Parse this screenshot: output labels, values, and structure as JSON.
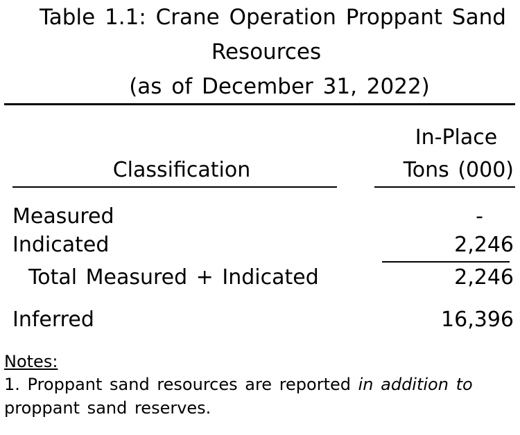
{
  "header": {
    "title_line1": "Table 1.1: Crane Operation Proppant Sand",
    "title_line2": "Resources",
    "title_line3": "(as of December 31, 2022)"
  },
  "table": {
    "column_headers": {
      "classification": "Classification",
      "tons_line1": "In-Place",
      "tons_line2": "Tons (000)"
    },
    "rows": [
      [
        "Measured",
        "-"
      ],
      [
        "Indicated",
        "2,246"
      ],
      [
        "Total Measured + Indicated",
        "2,246"
      ],
      [
        "Inferred",
        "16,396"
      ]
    ]
  },
  "notes": {
    "heading": "Notes:",
    "note1_start": "1. Proppant sand resources are reported ",
    "note1_italic": "in addition to",
    "note1_end": "proppant sand reserves."
  }
}
